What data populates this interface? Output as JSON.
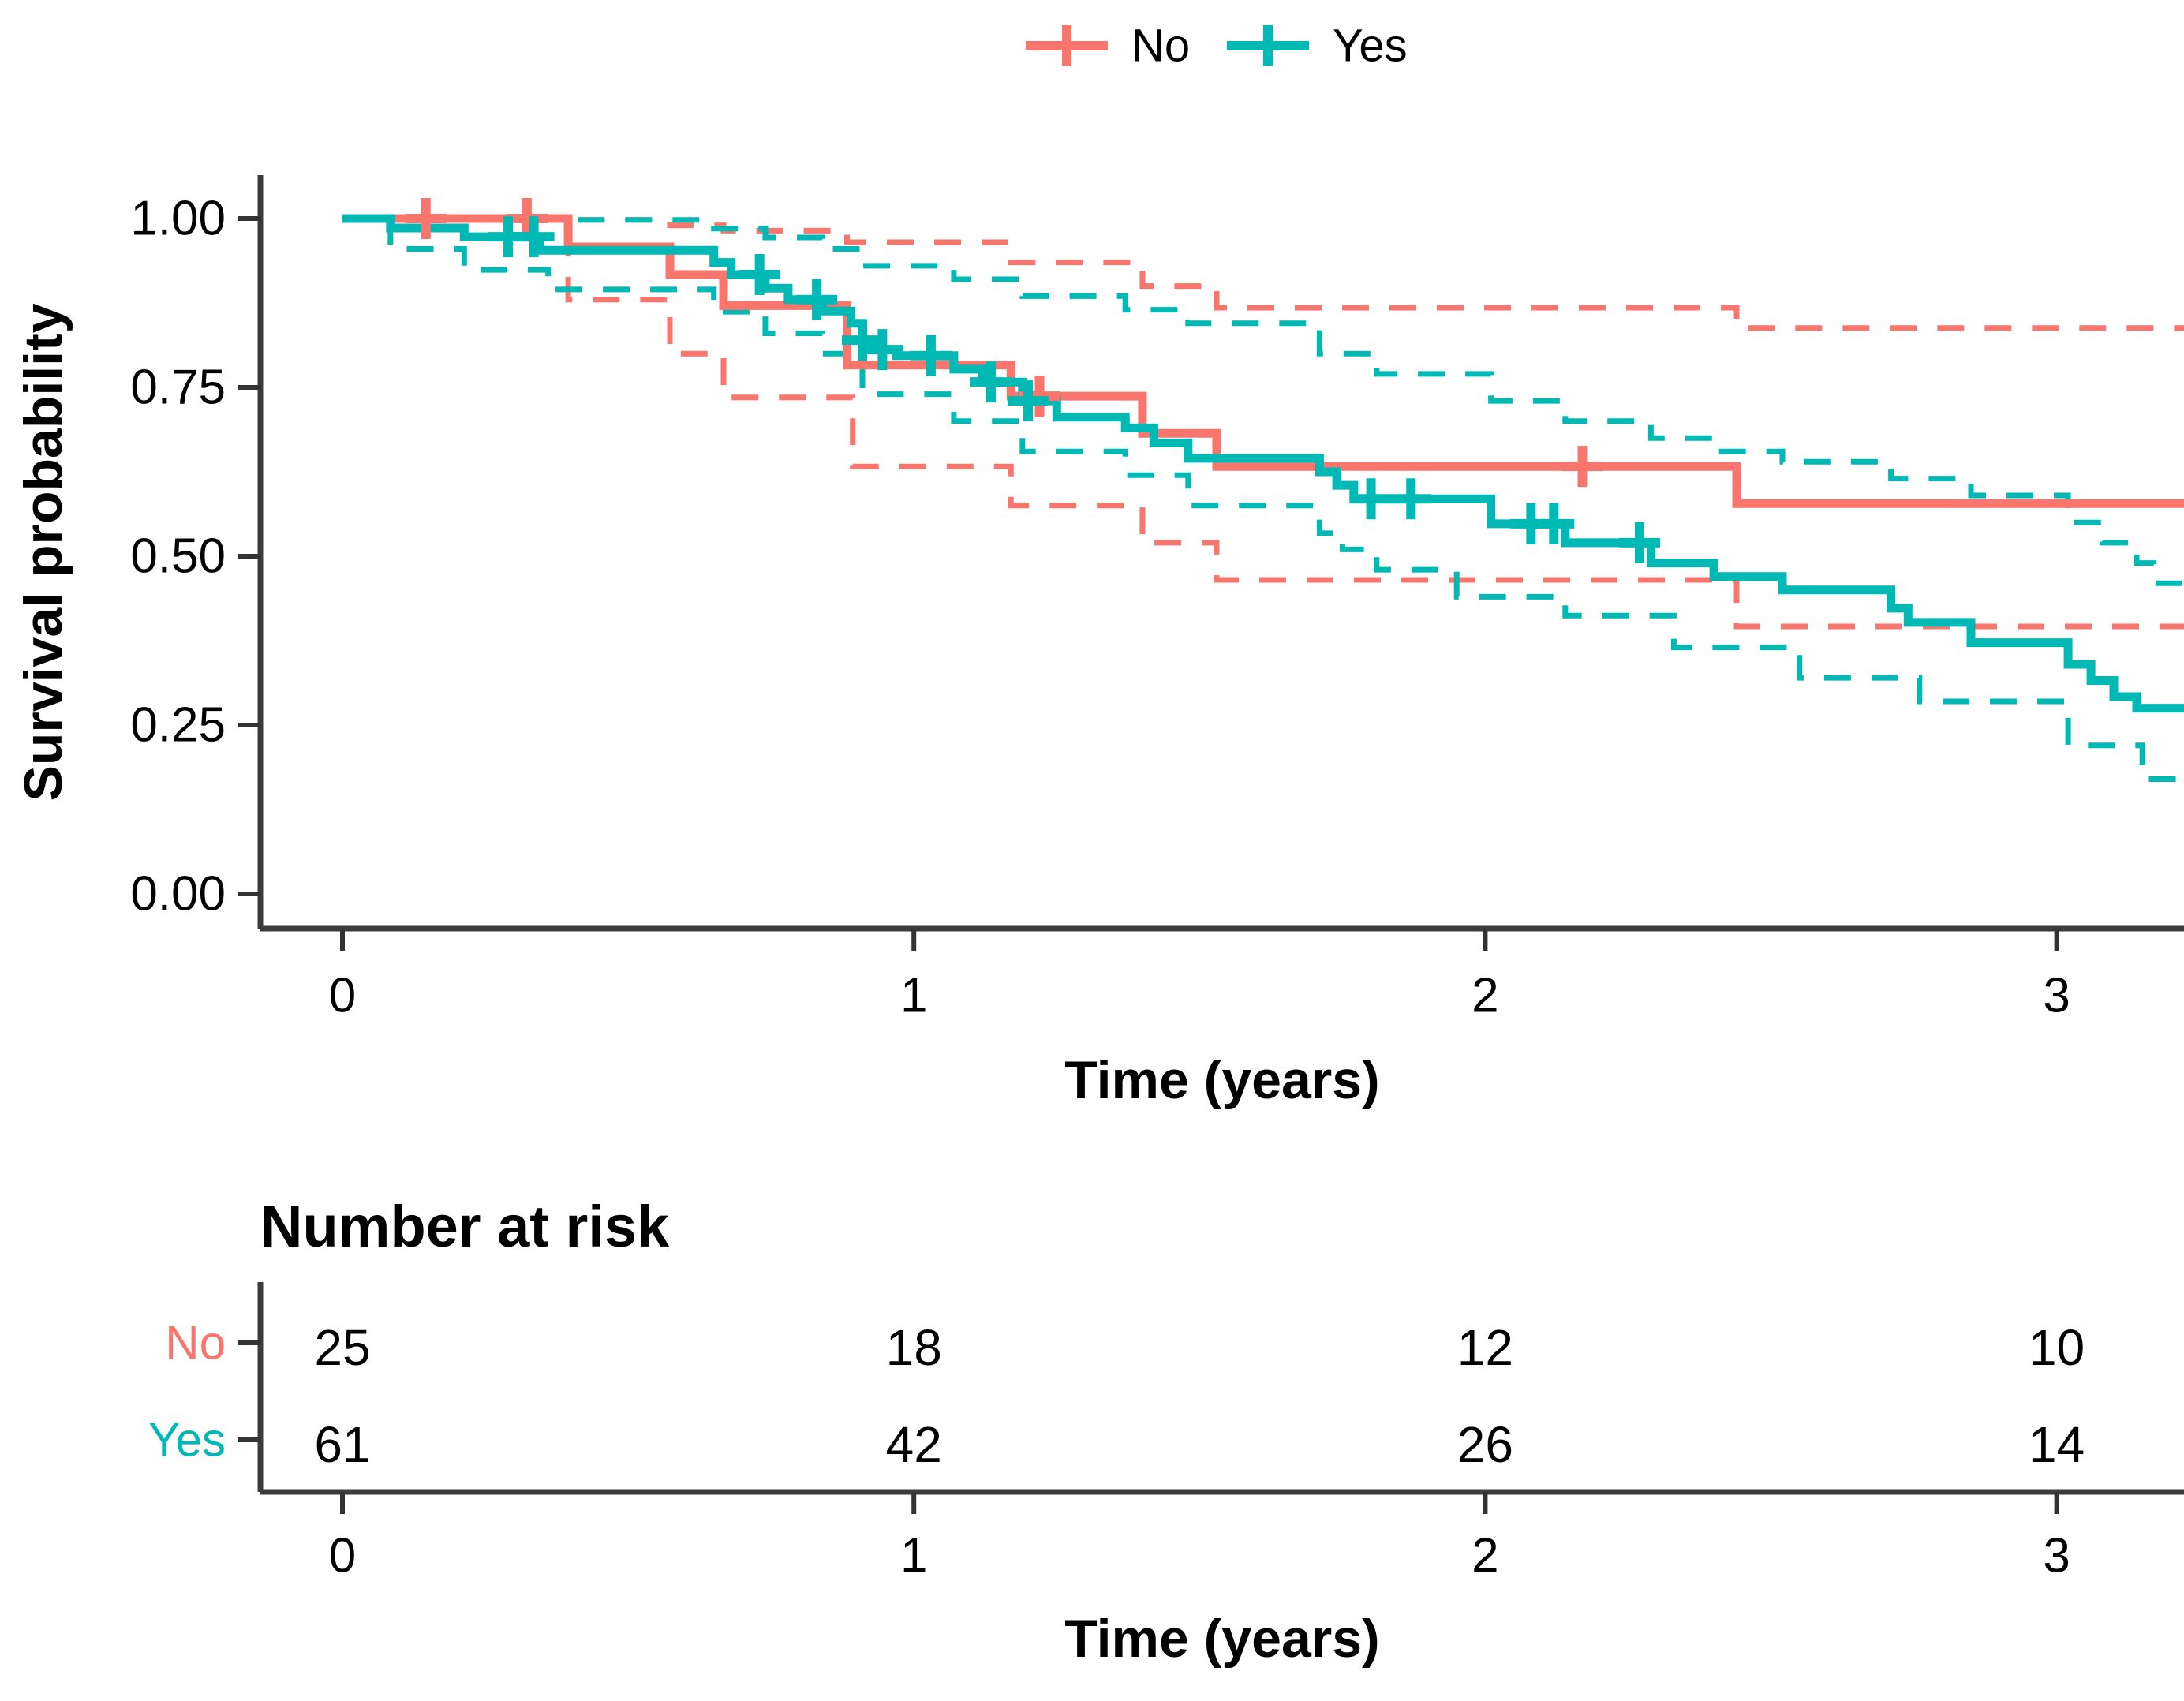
{
  "legend": {
    "position": "top",
    "items": [
      {
        "label": "No",
        "color": "#f8766d"
      },
      {
        "label": "Yes",
        "color": "#00b9b4"
      }
    ]
  },
  "chart_data": {
    "type": "line",
    "subtype": "kaplan-meier-step-curves-with-95CI",
    "title": "",
    "xlabel": "Time (years)",
    "ylabel": "Survival probability",
    "xlim": [
      0,
      3.224
    ],
    "ylim": [
      0,
      1
    ],
    "xticks": [
      "0",
      "1",
      "2",
      "3"
    ],
    "xtick_values": [
      0,
      1,
      2,
      3
    ],
    "yticks": [
      "0.00",
      "0.25",
      "0.50",
      "0.75",
      "1.00"
    ],
    "ytick_values": [
      0,
      0.25,
      0.5,
      0.75,
      1
    ],
    "grid": "off",
    "legend_position": "top",
    "series": [
      {
        "name": "No",
        "color": "#f8766d",
        "style": "solid",
        "points": [
          [
            0,
            1.0
          ],
          [
            0.395,
            0.958
          ],
          [
            0.573,
            0.917
          ],
          [
            0.667,
            0.871
          ],
          [
            0.883,
            0.783
          ],
          [
            1.17,
            0.737
          ],
          [
            1.4,
            0.682
          ],
          [
            1.53,
            0.633
          ],
          [
            2.44,
            0.578
          ],
          [
            3.224,
            0.578
          ]
        ],
        "censors": [
          [
            0.146,
            1.0
          ],
          [
            0.323,
            1.0
          ],
          [
            1.22,
            0.737
          ],
          [
            2.17,
            0.633
          ]
        ]
      },
      {
        "name": "No upper 95% CI",
        "color": "#f8766d",
        "style": "dashed",
        "points": [
          [
            0,
            1.0
          ],
          [
            0.395,
            0.998
          ],
          [
            0.573,
            0.99
          ],
          [
            0.667,
            0.982
          ],
          [
            0.883,
            0.965
          ],
          [
            1.17,
            0.935
          ],
          [
            1.4,
            0.9
          ],
          [
            1.53,
            0.868
          ],
          [
            2.44,
            0.838
          ],
          [
            3.224,
            0.838
          ]
        ],
        "censors": []
      },
      {
        "name": "No lower 95% CI",
        "color": "#f8766d",
        "style": "dashed",
        "points": [
          [
            0,
            1.0
          ],
          [
            0.395,
            0.88
          ],
          [
            0.573,
            0.8
          ],
          [
            0.667,
            0.735
          ],
          [
            0.893,
            0.633
          ],
          [
            1.17,
            0.575
          ],
          [
            1.4,
            0.52
          ],
          [
            1.53,
            0.465
          ],
          [
            2.44,
            0.396
          ],
          [
            3.224,
            0.396
          ]
        ],
        "censors": []
      },
      {
        "name": "Yes",
        "color": "#00b9b4",
        "style": "solid",
        "points": [
          [
            0,
            1.0
          ],
          [
            0.084,
            0.986
          ],
          [
            0.213,
            0.973
          ],
          [
            0.345,
            0.953
          ],
          [
            0.65,
            0.935
          ],
          [
            0.68,
            0.917
          ],
          [
            0.74,
            0.897
          ],
          [
            0.78,
            0.88
          ],
          [
            0.84,
            0.863
          ],
          [
            0.89,
            0.845
          ],
          [
            0.91,
            0.82
          ],
          [
            0.93,
            0.806
          ],
          [
            0.97,
            0.797
          ],
          [
            1.07,
            0.777
          ],
          [
            1.12,
            0.758
          ],
          [
            1.19,
            0.73
          ],
          [
            1.25,
            0.706
          ],
          [
            1.37,
            0.69
          ],
          [
            1.42,
            0.668
          ],
          [
            1.48,
            0.645
          ],
          [
            1.71,
            0.625
          ],
          [
            1.74,
            0.605
          ],
          [
            1.77,
            0.585
          ],
          [
            2.01,
            0.548
          ],
          [
            2.14,
            0.52
          ],
          [
            2.29,
            0.49
          ],
          [
            2.4,
            0.47
          ],
          [
            2.52,
            0.45
          ],
          [
            2.71,
            0.423
          ],
          [
            2.74,
            0.402
          ],
          [
            2.85,
            0.372
          ],
          [
            3.02,
            0.34
          ],
          [
            3.06,
            0.316
          ],
          [
            3.1,
            0.292
          ],
          [
            3.14,
            0.275
          ],
          [
            3.224,
            0.275
          ]
        ],
        "censors": [
          [
            0.29,
            0.973
          ],
          [
            0.335,
            0.973
          ],
          [
            0.73,
            0.917
          ],
          [
            0.83,
            0.88
          ],
          [
            0.91,
            0.82
          ],
          [
            0.945,
            0.806
          ],
          [
            1.03,
            0.797
          ],
          [
            1.135,
            0.758
          ],
          [
            1.2,
            0.73
          ],
          [
            1.8,
            0.585
          ],
          [
            1.87,
            0.585
          ],
          [
            2.08,
            0.548
          ],
          [
            2.12,
            0.548
          ],
          [
            2.27,
            0.52
          ]
        ]
      },
      {
        "name": "Yes upper 95% CI",
        "color": "#00b9b4",
        "style": "dashed",
        "points": [
          [
            0,
            1.0
          ],
          [
            0.345,
            0.998
          ],
          [
            0.65,
            0.985
          ],
          [
            0.74,
            0.972
          ],
          [
            0.84,
            0.955
          ],
          [
            0.91,
            0.93
          ],
          [
            1.07,
            0.91
          ],
          [
            1.19,
            0.885
          ],
          [
            1.37,
            0.865
          ],
          [
            1.48,
            0.845
          ],
          [
            1.71,
            0.8
          ],
          [
            1.81,
            0.77
          ],
          [
            2.01,
            0.73
          ],
          [
            2.14,
            0.7
          ],
          [
            2.29,
            0.675
          ],
          [
            2.4,
            0.655
          ],
          [
            2.52,
            0.64
          ],
          [
            2.71,
            0.615
          ],
          [
            2.85,
            0.59
          ],
          [
            3.02,
            0.55
          ],
          [
            3.08,
            0.52
          ],
          [
            3.14,
            0.49
          ],
          [
            3.17,
            0.46
          ],
          [
            3.224,
            0.45
          ]
        ],
        "censors": []
      },
      {
        "name": "Yes lower 95% CI",
        "color": "#00b9b4",
        "style": "dashed",
        "points": [
          [
            0,
            1.0
          ],
          [
            0.084,
            0.955
          ],
          [
            0.213,
            0.924
          ],
          [
            0.36,
            0.895
          ],
          [
            0.65,
            0.862
          ],
          [
            0.74,
            0.83
          ],
          [
            0.84,
            0.8
          ],
          [
            0.91,
            0.74
          ],
          [
            1.07,
            0.7
          ],
          [
            1.19,
            0.655
          ],
          [
            1.37,
            0.62
          ],
          [
            1.48,
            0.575
          ],
          [
            1.71,
            0.534
          ],
          [
            1.75,
            0.51
          ],
          [
            1.81,
            0.48
          ],
          [
            1.95,
            0.44
          ],
          [
            2.14,
            0.412
          ],
          [
            2.33,
            0.365
          ],
          [
            2.55,
            0.32
          ],
          [
            2.76,
            0.285
          ],
          [
            3.02,
            0.22
          ],
          [
            3.15,
            0.17
          ],
          [
            3.224,
            0.165
          ]
        ],
        "censors": []
      }
    ]
  },
  "risk_table": {
    "title": "Number at risk",
    "xlabel": "Time (years)",
    "time_points": [
      "0",
      "1",
      "2",
      "3"
    ],
    "time_values": [
      0,
      1,
      2,
      3
    ],
    "rows": [
      {
        "label": "No",
        "color": "#f8766d",
        "values": [
          "25",
          "18",
          "12",
          "10"
        ]
      },
      {
        "label": "Yes",
        "color": "#00b9b4",
        "values": [
          "61",
          "42",
          "26",
          "14"
        ]
      }
    ]
  }
}
